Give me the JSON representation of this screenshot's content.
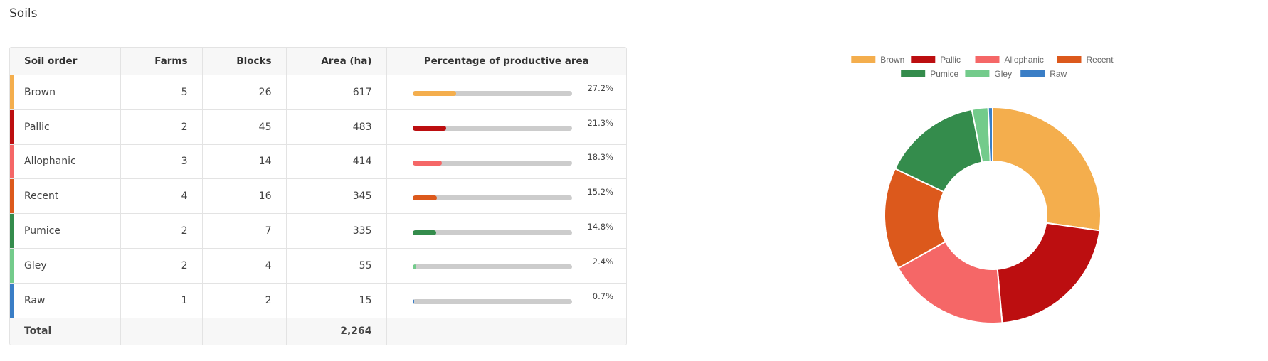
{
  "page": {
    "title": "Soils"
  },
  "table": {
    "headers": {
      "soil_order": "Soil order",
      "farms": "Farms",
      "blocks": "Blocks",
      "area": "Area (ha)",
      "percentage": "Percentage of productive area"
    },
    "rows": [
      {
        "name": "Brown",
        "farms": "5",
        "blocks": "26",
        "area": "617",
        "percent": 27.2,
        "percent_label": "27.2%",
        "color": "#f4ae4d"
      },
      {
        "name": "Pallic",
        "farms": "2",
        "blocks": "45",
        "area": "483",
        "percent": 21.3,
        "percent_label": "21.3%",
        "color": "#bc0e10"
      },
      {
        "name": "Allophanic",
        "farms": "3",
        "blocks": "14",
        "area": "414",
        "percent": 18.3,
        "percent_label": "18.3%",
        "color": "#f56767"
      },
      {
        "name": "Recent",
        "farms": "4",
        "blocks": "16",
        "area": "345",
        "percent": 15.2,
        "percent_label": "15.2%",
        "color": "#dc591c"
      },
      {
        "name": "Pumice",
        "farms": "2",
        "blocks": "7",
        "area": "335",
        "percent": 14.8,
        "percent_label": "14.8%",
        "color": "#348c4c"
      },
      {
        "name": "Gley",
        "farms": "2",
        "blocks": "4",
        "area": "55",
        "percent": 2.4,
        "percent_label": "2.4%",
        "color": "#73cb8b"
      },
      {
        "name": "Raw",
        "farms": "1",
        "blocks": "2",
        "area": "15",
        "percent": 0.7,
        "percent_label": "0.7%",
        "color": "#3a7ec6"
      }
    ],
    "total": {
      "label": "Total",
      "farms": "",
      "blocks": "",
      "area": "2,264"
    }
  },
  "chart_data": {
    "type": "pie",
    "variant": "doughnut",
    "categories": [
      "Brown",
      "Pallic",
      "Allophanic",
      "Recent",
      "Pumice",
      "Gley",
      "Raw"
    ],
    "values": [
      617,
      483,
      414,
      345,
      335,
      55,
      15
    ],
    "colors": [
      "#f4ae4d",
      "#bc0e10",
      "#f56767",
      "#dc591c",
      "#348c4c",
      "#73cb8b",
      "#3a7ec6"
    ],
    "legend": "top",
    "title": ""
  }
}
